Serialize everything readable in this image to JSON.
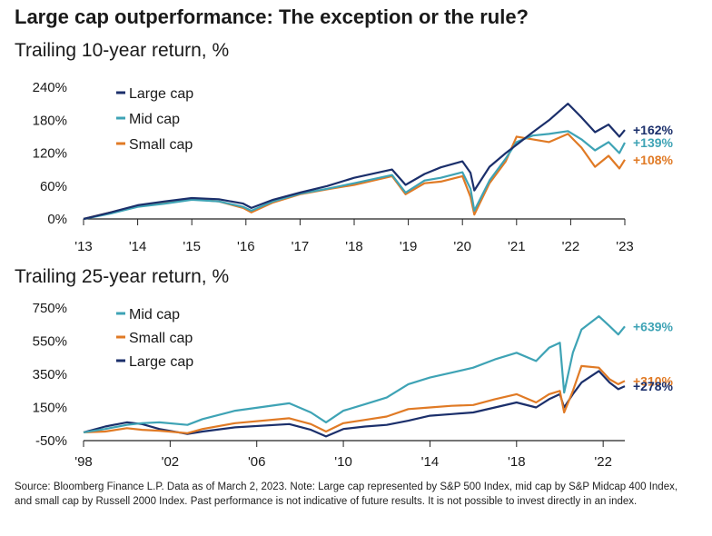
{
  "title": "Large cap outperformance: The exception or the rule?",
  "source": "Source: Bloomberg Finance L.P. Data as of March 2, 2023. Note: Large cap represented by S&P 500 Index, mid cap by S&P Midcap 400 Index, and small cap by Russell 2000 Index. Past performance is not indicative of future results. It is not possible to invest directly in an index.",
  "colors": {
    "large": "#1b2f6b",
    "mid": "#3ea3b5",
    "small": "#e07a25"
  },
  "chart_data": [
    {
      "type": "line",
      "title": "Trailing 10-year return, %",
      "xlabel": "",
      "ylabel": "",
      "xlim": [
        2013,
        2023
      ],
      "ylim": [
        0,
        240
      ],
      "yticks": [
        0,
        60,
        120,
        180,
        240
      ],
      "ytick_labels": [
        "0%",
        "60%",
        "120%",
        "180%",
        "240%"
      ],
      "xticks": [
        2013,
        2014,
        2015,
        2016,
        2017,
        2018,
        2019,
        2020,
        2021,
        2022,
        2023
      ],
      "xtick_labels": [
        "'13",
        "'14",
        "'15",
        "'16",
        "'17",
        "'18",
        "'19",
        "'20",
        "'21",
        "'22",
        "'23"
      ],
      "legend": [
        "Large cap",
        "Mid cap",
        "Small cap"
      ],
      "legend_keys": [
        "large",
        "mid",
        "small"
      ],
      "end_labels": [
        {
          "key": "large",
          "text": "+162%",
          "value": 162
        },
        {
          "key": "mid",
          "text": "+139%",
          "value": 139
        },
        {
          "key": "small",
          "text": "+108%",
          "value": 108
        }
      ],
      "series": [
        {
          "name": "Large cap",
          "key": "large",
          "x": [
            2013,
            2013.5,
            2014,
            2014.5,
            2015,
            2015.5,
            2015.95,
            2016.1,
            2016.5,
            2017,
            2017.5,
            2018,
            2018.7,
            2018.95,
            2019.3,
            2019.6,
            2020.0,
            2020.15,
            2020.22,
            2020.5,
            2020.8,
            2021.0,
            2021.3,
            2021.6,
            2021.95,
            2022.2,
            2022.45,
            2022.7,
            2022.9,
            2023.0
          ],
          "values": [
            0,
            12,
            25,
            32,
            38,
            36,
            28,
            20,
            35,
            48,
            60,
            75,
            90,
            62,
            82,
            94,
            105,
            84,
            52,
            95,
            120,
            135,
            158,
            180,
            210,
            185,
            158,
            172,
            150,
            162
          ]
        },
        {
          "name": "Mid cap",
          "key": "mid",
          "x": [
            2013,
            2013.5,
            2014,
            2014.5,
            2015,
            2015.5,
            2015.95,
            2016.1,
            2016.5,
            2017,
            2017.5,
            2018,
            2018.7,
            2018.95,
            2019.3,
            2019.6,
            2020.0,
            2020.15,
            2020.22,
            2020.5,
            2020.8,
            2021.0,
            2021.3,
            2021.6,
            2021.95,
            2022.2,
            2022.45,
            2022.7,
            2022.9,
            2023.0
          ],
          "values": [
            0,
            10,
            22,
            28,
            35,
            32,
            22,
            15,
            32,
            46,
            55,
            65,
            80,
            48,
            70,
            75,
            85,
            55,
            15,
            70,
            110,
            140,
            152,
            155,
            160,
            145,
            125,
            140,
            120,
            139
          ]
        },
        {
          "name": "Small cap",
          "key": "small",
          "x": [
            2013,
            2013.5,
            2014,
            2014.5,
            2015,
            2015.5,
            2015.95,
            2016.1,
            2016.5,
            2017,
            2017.5,
            2018,
            2018.7,
            2018.95,
            2019.3,
            2019.6,
            2020.0,
            2020.15,
            2020.22,
            2020.5,
            2020.8,
            2021.0,
            2021.3,
            2021.6,
            2021.95,
            2022.2,
            2022.45,
            2022.7,
            2022.9,
            2023.0
          ],
          "values": [
            0,
            12,
            24,
            30,
            36,
            32,
            20,
            12,
            30,
            45,
            54,
            62,
            78,
            45,
            65,
            68,
            78,
            40,
            8,
            65,
            105,
            150,
            145,
            140,
            155,
            130,
            95,
            115,
            92,
            108
          ]
        }
      ]
    },
    {
      "type": "line",
      "title": "Trailing 25-year return, %",
      "xlabel": "",
      "ylabel": "",
      "xlim": [
        1998,
        2023
      ],
      "ylim": [
        -50,
        750
      ],
      "yticks": [
        -50,
        150,
        350,
        550,
        750
      ],
      "ytick_labels": [
        "-50%",
        "150%",
        "350%",
        "550%",
        "750%"
      ],
      "xticks": [
        1998,
        2002,
        2006,
        2010,
        2014,
        2018,
        2022
      ],
      "xtick_labels": [
        "'98",
        "'02",
        "'06",
        "'10",
        "'14",
        "'18",
        "'22"
      ],
      "legend": [
        "Mid cap",
        "Small cap",
        "Large cap"
      ],
      "legend_keys": [
        "mid",
        "small",
        "large"
      ],
      "end_labels": [
        {
          "key": "mid",
          "text": "+639%",
          "value": 639
        },
        {
          "key": "small",
          "text": "+310%",
          "value": 310
        },
        {
          "key": "large",
          "text": "+278%",
          "value": 278
        }
      ],
      "series": [
        {
          "name": "Mid cap",
          "key": "mid",
          "x": [
            1998,
            1999,
            2000,
            2000.7,
            2001.5,
            2002.8,
            2003.5,
            2005,
            2007.5,
            2008.5,
            2009.2,
            2010,
            2011,
            2012,
            2013,
            2014,
            2015,
            2016,
            2017,
            2018,
            2018.9,
            2019.5,
            2020.0,
            2020.2,
            2020.6,
            2021,
            2021.8,
            2022.3,
            2022.7,
            2023.0
          ],
          "values": [
            0,
            20,
            45,
            55,
            60,
            45,
            80,
            130,
            175,
            120,
            60,
            130,
            170,
            210,
            290,
            330,
            360,
            390,
            440,
            480,
            430,
            510,
            540,
            240,
            480,
            620,
            700,
            640,
            590,
            639
          ]
        },
        {
          "name": "Small cap",
          "key": "small",
          "x": [
            1998,
            1999,
            2000,
            2000.7,
            2001.5,
            2002.8,
            2003.5,
            2005,
            2007.5,
            2008.5,
            2009.2,
            2010,
            2011,
            2012,
            2013,
            2014,
            2015,
            2016,
            2017,
            2018,
            2018.9,
            2019.5,
            2020.0,
            2020.2,
            2020.6,
            2021,
            2021.8,
            2022.3,
            2022.7,
            2023.0
          ],
          "values": [
            0,
            5,
            25,
            15,
            10,
            -5,
            20,
            55,
            85,
            50,
            5,
            55,
            75,
            95,
            140,
            150,
            160,
            165,
            200,
            230,
            180,
            230,
            250,
            120,
            250,
            400,
            390,
            320,
            290,
            310
          ]
        },
        {
          "name": "Large cap",
          "key": "large",
          "x": [
            1998,
            1999,
            2000,
            2000.7,
            2001.5,
            2002.8,
            2003.5,
            2005,
            2007.5,
            2008.5,
            2009.2,
            2010,
            2011,
            2012,
            2013,
            2014,
            2015,
            2016,
            2017,
            2018,
            2018.9,
            2019.5,
            2020.0,
            2020.2,
            2020.6,
            2021,
            2021.8,
            2022.3,
            2022.7,
            2023.0
          ],
          "values": [
            0,
            35,
            60,
            50,
            20,
            -10,
            5,
            30,
            50,
            15,
            -25,
            20,
            35,
            45,
            70,
            100,
            110,
            120,
            150,
            180,
            150,
            200,
            230,
            150,
            230,
            300,
            370,
            300,
            260,
            278
          ]
        }
      ]
    }
  ]
}
